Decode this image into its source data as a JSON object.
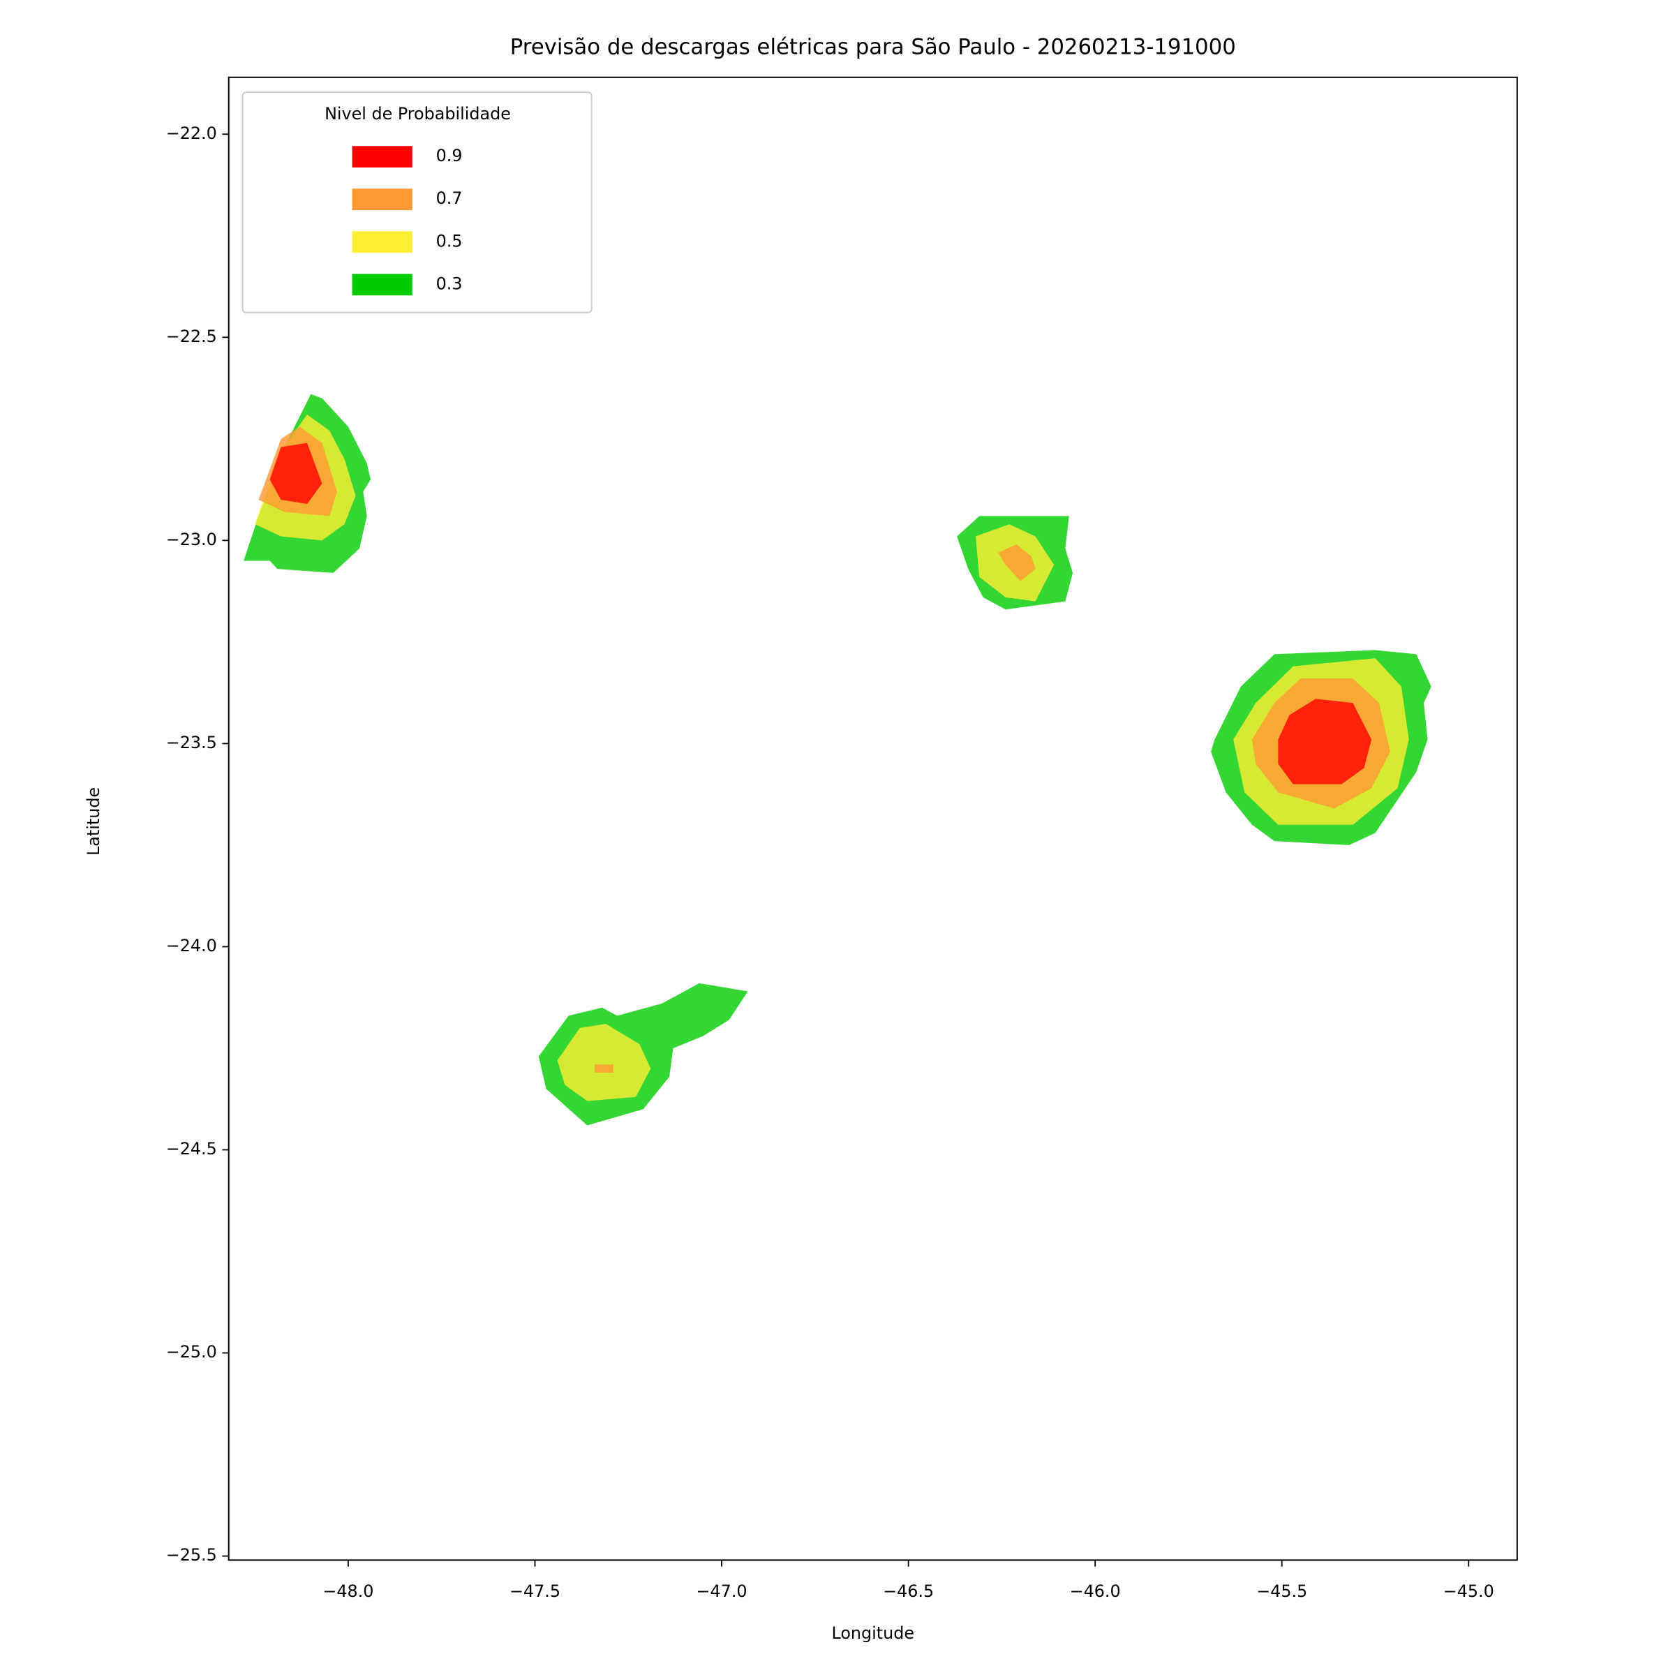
{
  "chart_data": {
    "type": "contour",
    "title": "Previsão de descargas elétricas para São Paulo - 20260213-191000",
    "x_label": "Longitude",
    "y_label": "Latitude",
    "xlim": [
      -48.32,
      -44.87
    ],
    "ylim": [
      -25.51,
      -21.86
    ],
    "xticks": [
      {
        "value": -48,
        "label": "−48.0"
      },
      {
        "value": -47.5,
        "label": "−47.5"
      },
      {
        "value": -47,
        "label": "−47.0"
      },
      {
        "value": -46.5,
        "label": "−46.5"
      },
      {
        "value": -46,
        "label": "−46.0"
      },
      {
        "value": -45.5,
        "label": "−45.5"
      },
      {
        "value": -45,
        "label": "−45.0"
      }
    ],
    "yticks": [
      {
        "value": -22,
        "label": "−22.0"
      },
      {
        "value": -22.5,
        "label": "−22.5"
      },
      {
        "value": -23,
        "label": "−23.0"
      },
      {
        "value": -23.5,
        "label": "−23.5"
      },
      {
        "value": -24,
        "label": "−24.0"
      },
      {
        "value": -24.5,
        "label": "−24.5"
      },
      {
        "value": -25,
        "label": "−25.0"
      },
      {
        "value": -25.5,
        "label": "−25.5"
      }
    ],
    "alpha": 0.8,
    "legend": {
      "title": "Nivel de Probabilidade",
      "position": "upper left",
      "levels": [
        0.9,
        0.7,
        0.5,
        0.3
      ],
      "colors": [
        "#ff0000",
        "#ff9933",
        "#ffee33",
        "#00cc00"
      ]
    },
    "regions": [
      {
        "level": 0.3,
        "x": [
          -48.28,
          -48.24,
          -48.16,
          -48.1,
          -48.07,
          -48.0,
          -47.95,
          -47.94,
          -47.96,
          -47.95,
          -47.97,
          -48.04,
          -48.19,
          -48.21
        ],
        "y": [
          -23.05,
          -22.94,
          -22.75,
          -22.64,
          -22.65,
          -22.72,
          -22.81,
          -22.85,
          -22.88,
          -22.94,
          -23.02,
          -23.08,
          -23.07,
          -23.05
        ]
      },
      {
        "level": 0.5,
        "x": [
          -48.25,
          -48.18,
          -48.11,
          -48.05,
          -48.01,
          -47.98,
          -48.01,
          -48.07,
          -48.18
        ],
        "y": [
          -22.96,
          -22.78,
          -22.69,
          -22.73,
          -22.8,
          -22.89,
          -22.96,
          -23.0,
          -22.99
        ]
      },
      {
        "level": 0.7,
        "x": [
          -48.24,
          -48.18,
          -48.13,
          -48.07,
          -48.03,
          -48.05,
          -48.17
        ],
        "y": [
          -22.9,
          -22.75,
          -22.72,
          -22.76,
          -22.88,
          -22.94,
          -22.93
        ]
      },
      {
        "level": 0.9,
        "x": [
          -48.21,
          -48.18,
          -48.11,
          -48.07,
          -48.11,
          -48.18
        ],
        "y": [
          -22.85,
          -22.77,
          -22.76,
          -22.86,
          -22.91,
          -22.9
        ]
      },
      {
        "level": 0.3,
        "x": [
          -46.37,
          -46.31,
          -46.07,
          -46.08,
          -46.06,
          -46.08,
          -46.24,
          -46.3,
          -46.34
        ],
        "y": [
          -22.99,
          -22.94,
          -22.94,
          -23.02,
          -23.08,
          -23.15,
          -23.17,
          -23.14,
          -23.07
        ]
      },
      {
        "level": 0.5,
        "x": [
          -46.32,
          -46.23,
          -46.16,
          -46.11,
          -46.16,
          -46.24,
          -46.31
        ],
        "y": [
          -22.99,
          -22.96,
          -22.99,
          -23.06,
          -23.15,
          -23.14,
          -23.09
        ]
      },
      {
        "level": 0.7,
        "x": [
          -46.26,
          -46.21,
          -46.17,
          -46.16,
          -46.2,
          -46.24
        ],
        "y": [
          -23.03,
          -23.01,
          -23.04,
          -23.07,
          -23.1,
          -23.06
        ]
      },
      {
        "level": 0.3,
        "x": [
          -45.68,
          -45.61,
          -45.52,
          -45.25,
          -45.14,
          -45.1,
          -45.12,
          -45.11,
          -45.14,
          -45.25,
          -45.32,
          -45.52,
          -45.58,
          -45.65,
          -45.69
        ],
        "y": [
          -23.49,
          -23.36,
          -23.28,
          -23.27,
          -23.28,
          -23.36,
          -23.4,
          -23.49,
          -23.57,
          -23.72,
          -23.75,
          -23.74,
          -23.7,
          -23.62,
          -23.52
        ]
      },
      {
        "level": 0.5,
        "x": [
          -45.63,
          -45.57,
          -45.47,
          -45.25,
          -45.18,
          -45.16,
          -45.19,
          -45.31,
          -45.51,
          -45.6
        ],
        "y": [
          -23.49,
          -23.4,
          -23.31,
          -23.29,
          -23.36,
          -23.49,
          -23.61,
          -23.7,
          -23.7,
          -23.62
        ]
      },
      {
        "level": 0.7,
        "x": [
          -45.58,
          -45.52,
          -45.45,
          -45.31,
          -45.24,
          -45.21,
          -45.26,
          -45.36,
          -45.51,
          -45.57
        ],
        "y": [
          -23.49,
          -23.4,
          -23.34,
          -23.34,
          -23.4,
          -23.52,
          -23.61,
          -23.66,
          -23.62,
          -23.55
        ]
      },
      {
        "level": 0.9,
        "x": [
          -45.51,
          -45.48,
          -45.41,
          -45.31,
          -45.26,
          -45.28,
          -45.34,
          -45.47,
          -45.51
        ],
        "y": [
          -23.49,
          -23.43,
          -23.39,
          -23.4,
          -23.49,
          -23.56,
          -23.6,
          -23.6,
          -23.55
        ]
      },
      {
        "level": 0.3,
        "x": [
          -47.49,
          -47.41,
          -47.32,
          -47.28,
          -47.16,
          -47.06,
          -46.93,
          -46.98,
          -47.05,
          -47.13,
          -47.14,
          -47.21,
          -47.36,
          -47.47
        ],
        "y": [
          -24.27,
          -24.17,
          -24.15,
          -24.17,
          -24.14,
          -24.09,
          -24.11,
          -24.18,
          -24.22,
          -24.25,
          -24.32,
          -24.4,
          -24.44,
          -24.35
        ]
      },
      {
        "level": 0.5,
        "x": [
          -47.44,
          -47.38,
          -47.31,
          -47.22,
          -47.19,
          -47.23,
          -47.36,
          -47.42
        ],
        "y": [
          -24.28,
          -24.2,
          -24.19,
          -24.24,
          -24.3,
          -24.37,
          -24.38,
          -24.34
        ]
      },
      {
        "level": 0.7,
        "x": [
          -47.34,
          -47.29,
          -47.29,
          -47.34
        ],
        "y": [
          -24.29,
          -24.29,
          -24.31,
          -24.31
        ]
      }
    ]
  }
}
